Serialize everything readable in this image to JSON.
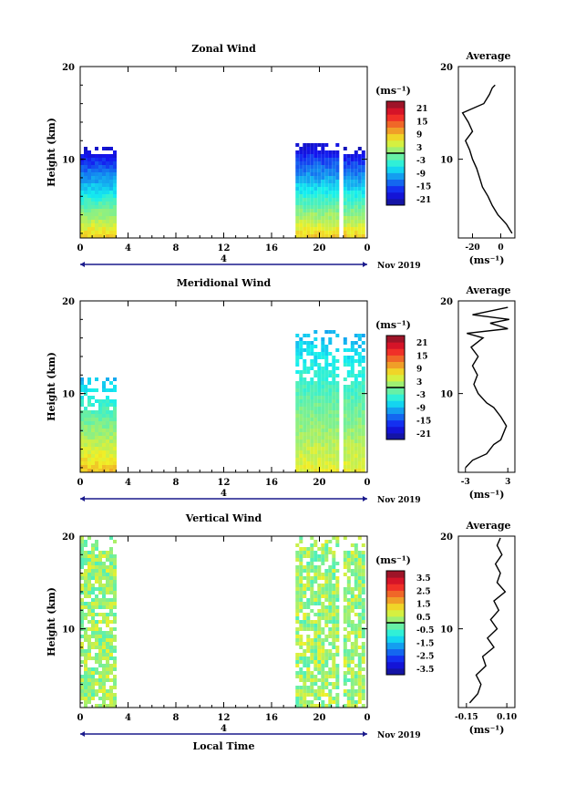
{
  "chart_data": [
    {
      "type": "heatmap",
      "title": "Zonal Wind",
      "ylabel": "Height (km)",
      "ylim": [
        1.5,
        20
      ],
      "yticks": [
        "10",
        "20"
      ],
      "xlim": [
        0,
        24
      ],
      "xticks": [
        "0",
        "4",
        "8",
        "12",
        "16",
        "20",
        "0"
      ],
      "day_label": "4",
      "date_label": "Nov 2019",
      "colorbar": {
        "unit": "(ms⁻¹)",
        "labels": [
          "21",
          "15",
          "9",
          "3",
          "-3",
          "-9",
          "-15",
          "-21"
        ],
        "range": [
          -24,
          24
        ]
      },
      "data_blocks": [
        {
          "t": [
            0,
            3
          ],
          "h": [
            1.5,
            11.5
          ],
          "value_range": [
            -21,
            9
          ]
        },
        {
          "t": [
            18,
            21.5
          ],
          "h": [
            1.5,
            12
          ],
          "value_range": [
            -21,
            9
          ]
        },
        {
          "t": [
            22,
            23.8
          ],
          "h": [
            1.5,
            11.5
          ],
          "value_range": [
            -21,
            9
          ]
        }
      ],
      "average": {
        "title": "Average",
        "xticks": [
          "-20",
          "0"
        ],
        "xlim": [
          -30,
          10
        ],
        "ylim": [
          1.5,
          20
        ],
        "xlabel": "(ms⁻¹)",
        "profile": [
          [
            8,
            2
          ],
          [
            4,
            3
          ],
          [
            -2,
            4
          ],
          [
            -6,
            5
          ],
          [
            -9,
            6
          ],
          [
            -13,
            7
          ],
          [
            -15,
            8
          ],
          [
            -17,
            9
          ],
          [
            -20,
            10
          ],
          [
            -22,
            11
          ],
          [
            -25,
            12
          ],
          [
            -20,
            13
          ],
          [
            -23,
            14
          ],
          [
            -27,
            15
          ],
          [
            -12,
            16
          ],
          [
            -8,
            17
          ],
          [
            -6,
            17.7
          ],
          [
            -4,
            18
          ]
        ]
      }
    },
    {
      "type": "heatmap",
      "title": "Meridional Wind",
      "ylabel": "Height (km)",
      "ylim": [
        1.5,
        20
      ],
      "yticks": [
        "10",
        "20"
      ],
      "xlim": [
        0,
        24
      ],
      "xticks": [
        "0",
        "4",
        "8",
        "12",
        "16",
        "20",
        "0"
      ],
      "day_label": "4",
      "date_label": "Nov 2019",
      "colorbar": {
        "unit": "(ms⁻¹)",
        "labels": [
          "21",
          "15",
          "9",
          "3",
          "-3",
          "-9",
          "-15",
          "-21"
        ],
        "range": [
          -24,
          24
        ]
      },
      "data_blocks": [
        {
          "t": [
            0,
            3
          ],
          "h": [
            1.5,
            12
          ],
          "value_range": [
            -9,
            9
          ]
        },
        {
          "t": [
            18,
            21.5
          ],
          "h": [
            1.5,
            17
          ],
          "value_range": [
            -9,
            6
          ]
        },
        {
          "t": [
            22,
            23.8
          ],
          "h": [
            1.5,
            16.5
          ],
          "value_range": [
            -9,
            6
          ]
        }
      ],
      "average": {
        "title": "Average",
        "xticks": [
          "-3",
          "3"
        ],
        "xlim": [
          -4,
          4
        ],
        "ylim": [
          1.5,
          20
        ],
        "xlabel": "(ms⁻¹)",
        "profile": [
          [
            -3,
            2
          ],
          [
            -2,
            2.8
          ],
          [
            0,
            3.5
          ],
          [
            1,
            4.5
          ],
          [
            2,
            5
          ],
          [
            2.8,
            6.5
          ],
          [
            2,
            7.5
          ],
          [
            1,
            8.5
          ],
          [
            0,
            9
          ],
          [
            -1.2,
            10
          ],
          [
            -1.8,
            11
          ],
          [
            -1.3,
            12
          ],
          [
            -2,
            13
          ],
          [
            -1.2,
            14
          ],
          [
            -2.2,
            15
          ],
          [
            -0.5,
            16
          ],
          [
            -2.8,
            16.5
          ],
          [
            3,
            17
          ],
          [
            0.5,
            17.6
          ],
          [
            3.2,
            18
          ],
          [
            -2,
            18.5
          ],
          [
            3,
            19.3
          ]
        ]
      }
    },
    {
      "type": "heatmap",
      "title": "Vertical Wind",
      "ylabel": "Height (km)",
      "xlabel": "Local Time",
      "ylim": [
        1.5,
        20
      ],
      "yticks": [
        "10",
        "20"
      ],
      "xlim": [
        0,
        24
      ],
      "xticks": [
        "0",
        "4",
        "8",
        "12",
        "16",
        "20",
        "0"
      ],
      "day_label": "4",
      "date_label": "Nov 2019",
      "colorbar": {
        "unit": "(ms⁻¹)",
        "labels": [
          "3.5",
          "2.5",
          "1.5",
          "0.5",
          "-0.5",
          "-1.5",
          "-2.5",
          "-3.5"
        ],
        "range": [
          -4,
          4
        ]
      },
      "data_blocks": [
        {
          "t": [
            0,
            3
          ],
          "h": [
            1.5,
            20
          ],
          "value_range": [
            -0.5,
            1
          ]
        },
        {
          "t": [
            18,
            21.5
          ],
          "h": [
            1.5,
            20
          ],
          "value_range": [
            -0.5,
            1
          ]
        },
        {
          "t": [
            22,
            23.8
          ],
          "h": [
            1.5,
            20
          ],
          "value_range": [
            -0.5,
            1
          ]
        }
      ],
      "average": {
        "title": "Average",
        "xticks": [
          "-0.15",
          "0.10"
        ],
        "xlim": [
          -0.2,
          0.15
        ],
        "ylim": [
          1.5,
          20
        ],
        "xlabel": "(ms⁻¹)",
        "profile": [
          [
            -0.13,
            2
          ],
          [
            -0.08,
            3
          ],
          [
            -0.06,
            4
          ],
          [
            -0.09,
            5
          ],
          [
            -0.03,
            6
          ],
          [
            -0.05,
            7
          ],
          [
            0.02,
            8
          ],
          [
            -0.02,
            9
          ],
          [
            0.04,
            10
          ],
          [
            0.0,
            11
          ],
          [
            0.05,
            12
          ],
          [
            0.02,
            13
          ],
          [
            0.09,
            14
          ],
          [
            0.04,
            15
          ],
          [
            0.06,
            16
          ],
          [
            0.03,
            17
          ],
          [
            0.07,
            18
          ],
          [
            0.04,
            19
          ],
          [
            0.06,
            19.8
          ]
        ]
      }
    }
  ]
}
